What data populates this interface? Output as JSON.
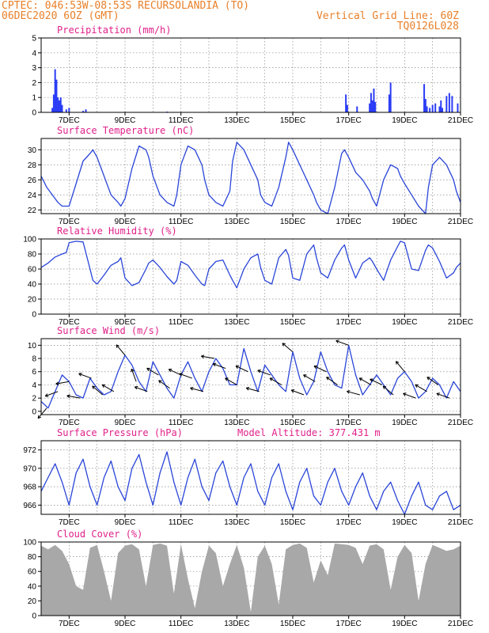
{
  "header": {
    "line1_left": "CPTEC:   046:53W-08:53S  RECURSOLANDIA (TO)",
    "line2_left": "06DEC2020 6OZ (GMT)",
    "line1_right": "Vertical Grid Line: 60Z",
    "line2_right": "TQ0126L028"
  },
  "colors": {
    "header": "#e8802a",
    "title": "#e0218a",
    "series": "#2a45d8",
    "bars": "#2a3cf5",
    "cloud": "#a8a8a8",
    "grid": "#8a8a8a"
  },
  "x_tick_labels": [
    "7DEC",
    "9DEC",
    "11DEC",
    "13DEC",
    "15DEC",
    "17DEC",
    "19DEC",
    "21DEC"
  ],
  "chart_data": [
    {
      "id": "precip",
      "type": "bar",
      "title": "Precipitation (mm/h)",
      "ylim": [
        0,
        5
      ],
      "yticks": [
        0,
        1,
        2,
        3,
        4,
        5
      ],
      "grid": true,
      "x": [
        6.4,
        6.45,
        6.5,
        6.55,
        6.6,
        6.65,
        6.7,
        6.75,
        6.9,
        7.0,
        7.5,
        7.6,
        10.5,
        16.9,
        16.95,
        17.3,
        17.75,
        17.8,
        17.85,
        17.9,
        17.95,
        18.45,
        18.5,
        19.7,
        19.75,
        19.8,
        19.9,
        20.0,
        20.1,
        20.25,
        20.3,
        20.35,
        20.5,
        20.6,
        20.7,
        20.9
      ],
      "values": [
        0.3,
        1.2,
        2.9,
        2.2,
        1.0,
        0.8,
        1.0,
        0.5,
        0.2,
        0.3,
        0.1,
        0.2,
        0.05,
        1.2,
        0.5,
        0.4,
        0.6,
        1.3,
        0.8,
        1.6,
        0.7,
        1.2,
        2.0,
        1.9,
        0.9,
        0.4,
        0.3,
        0.5,
        0.6,
        0.4,
        0.8,
        0.3,
        1.1,
        1.3,
        1.1,
        0.6
      ]
    },
    {
      "id": "temp",
      "type": "line",
      "title": "Surface Temperature (nC)",
      "ylim": [
        21.5,
        31.5
      ],
      "yticks": [
        22,
        24,
        26,
        28,
        30
      ],
      "grid": true,
      "x": [
        6.0,
        6.2,
        6.4,
        6.6,
        6.75,
        7.0,
        7.25,
        7.5,
        7.75,
        7.85,
        8.0,
        8.25,
        8.5,
        8.75,
        8.85,
        9.0,
        9.25,
        9.5,
        9.75,
        9.85,
        10.0,
        10.25,
        10.5,
        10.75,
        10.85,
        11.0,
        11.25,
        11.5,
        11.75,
        11.85,
        12.0,
        12.25,
        12.5,
        12.75,
        12.85,
        13.0,
        13.25,
        13.5,
        13.75,
        13.85,
        14.0,
        14.25,
        14.5,
        14.75,
        14.85,
        15.0,
        15.25,
        15.5,
        15.75,
        15.85,
        16.0,
        16.25,
        16.5,
        16.75,
        16.85,
        17.0,
        17.25,
        17.5,
        17.75,
        17.85,
        18.0,
        18.25,
        18.5,
        18.75,
        18.85,
        19.0,
        19.25,
        19.5,
        19.75,
        19.85,
        20.0,
        20.25,
        20.5,
        20.75,
        20.85,
        21.0
      ],
      "values": [
        26.5,
        25.0,
        24.0,
        23.0,
        22.5,
        22.5,
        25.5,
        28.5,
        29.5,
        30.0,
        29.0,
        26.5,
        24.0,
        23.0,
        22.5,
        23.5,
        27.5,
        30.5,
        30.0,
        29.0,
        26.5,
        24.0,
        23.0,
        22.5,
        24.0,
        28.0,
        30.5,
        30.0,
        28.0,
        26.0,
        24.0,
        23.0,
        22.5,
        24.5,
        28.5,
        31.0,
        30.0,
        28.0,
        26.0,
        24.0,
        23.0,
        22.5,
        25.0,
        29.0,
        31.0,
        30.0,
        28.0,
        26.0,
        24.0,
        23.0,
        22.0,
        21.5,
        25.0,
        29.5,
        30.0,
        29.0,
        27.0,
        26.0,
        24.5,
        23.5,
        22.5,
        26.0,
        28.0,
        27.5,
        26.5,
        25.5,
        24.0,
        22.5,
        21.5,
        25.0,
        28.0,
        29.0,
        28.0,
        26.0,
        24.5,
        23.0
      ]
    },
    {
      "id": "rh",
      "type": "line",
      "title": "Relative Humidity (%)",
      "ylim": [
        0,
        100
      ],
      "yticks": [
        0,
        20,
        40,
        60,
        80,
        100
      ],
      "grid": true,
      "x": [
        6.0,
        6.25,
        6.5,
        6.75,
        6.9,
        7.0,
        7.25,
        7.5,
        7.75,
        7.85,
        8.0,
        8.25,
        8.5,
        8.75,
        8.85,
        9.0,
        9.25,
        9.5,
        9.75,
        9.85,
        10.0,
        10.25,
        10.5,
        10.75,
        10.85,
        11.0,
        11.25,
        11.5,
        11.75,
        11.85,
        12.0,
        12.25,
        12.5,
        12.75,
        12.85,
        13.0,
        13.25,
        13.5,
        13.75,
        13.85,
        14.0,
        14.25,
        14.5,
        14.75,
        14.85,
        15.0,
        15.25,
        15.5,
        15.75,
        15.85,
        16.0,
        16.25,
        16.5,
        16.75,
        16.85,
        17.0,
        17.25,
        17.5,
        17.75,
        17.85,
        18.0,
        18.25,
        18.5,
        18.75,
        18.85,
        19.0,
        19.25,
        19.5,
        19.75,
        19.85,
        20.0,
        20.25,
        20.5,
        20.75,
        20.85,
        21.0
      ],
      "values": [
        62,
        68,
        76,
        80,
        82,
        95,
        97,
        96,
        60,
        45,
        40,
        52,
        65,
        70,
        75,
        48,
        38,
        42,
        60,
        68,
        72,
        62,
        50,
        40,
        45,
        70,
        65,
        52,
        40,
        38,
        60,
        70,
        72,
        52,
        45,
        35,
        60,
        75,
        80,
        62,
        45,
        40,
        75,
        86,
        78,
        48,
        45,
        80,
        92,
        75,
        55,
        48,
        72,
        88,
        92,
        72,
        48,
        68,
        75,
        70,
        60,
        45,
        72,
        90,
        97,
        95,
        60,
        58,
        85,
        92,
        88,
        70,
        48,
        55,
        62,
        68
      ]
    },
    {
      "id": "wind",
      "type": "line",
      "title": "Surface Wind (m/s)",
      "ylim": [
        -0.5,
        11
      ],
      "yticks": [
        0,
        2,
        4,
        6,
        8,
        10
      ],
      "grid": true,
      "x": [
        6.0,
        6.25,
        6.5,
        6.75,
        7.0,
        7.25,
        7.5,
        7.75,
        8.0,
        8.25,
        8.5,
        8.75,
        9.0,
        9.25,
        9.5,
        9.75,
        10.0,
        10.25,
        10.5,
        10.75,
        11.0,
        11.25,
        11.5,
        11.75,
        12.0,
        12.25,
        12.5,
        12.75,
        13.0,
        13.25,
        13.5,
        13.75,
        14.0,
        14.25,
        14.5,
        14.75,
        15.0,
        15.25,
        15.5,
        15.75,
        16.0,
        16.25,
        16.5,
        16.75,
        17.0,
        17.25,
        17.5,
        17.75,
        18.0,
        18.25,
        18.5,
        18.75,
        19.0,
        19.25,
        19.5,
        19.75,
        20.0,
        20.25,
        20.5,
        20.75,
        21.0
      ],
      "values": [
        1.5,
        0.5,
        3.0,
        5.5,
        4.5,
        2.5,
        2.0,
        5.0,
        3.5,
        2.5,
        3.0,
        6.0,
        8.5,
        7.0,
        4.5,
        3.0,
        7.5,
        5.5,
        3.5,
        2.0,
        5.5,
        7.5,
        5.0,
        3.0,
        6.0,
        8.0,
        6.5,
        4.0,
        4.0,
        9.5,
        6.0,
        3.0,
        7.0,
        5.5,
        4.0,
        3.0,
        9.0,
        5.0,
        2.5,
        4.5,
        9.0,
        6.0,
        4.0,
        3.5,
        10.0,
        5.5,
        2.5,
        4.0,
        5.5,
        4.0,
        2.5,
        5.0,
        6.0,
        4.5,
        2.0,
        3.0,
        5.0,
        4.0,
        2.0,
        4.5,
        3.0
      ],
      "vectors_x": [
        6.2,
        6.6,
        7.0,
        7.4,
        7.8,
        8.2,
        8.6,
        9.0,
        9.4,
        9.8,
        10.2,
        10.6,
        11.0,
        11.4,
        11.8,
        12.2,
        12.6,
        13.0,
        13.4,
        13.8,
        14.2,
        14.6,
        15.0,
        15.4,
        15.8,
        16.2,
        16.6,
        17.0,
        17.4,
        17.8,
        18.2,
        18.6,
        19.0,
        19.4,
        19.8,
        20.2,
        20.6
      ],
      "vectors_angle_deg": [
        130,
        160,
        170,
        190,
        200,
        220,
        210,
        230,
        250,
        200,
        210,
        215,
        205,
        200,
        195,
        190,
        200,
        210,
        205,
        195,
        200,
        210,
        220,
        200,
        210,
        205,
        215,
        200,
        195,
        210,
        205,
        220,
        230,
        200,
        210,
        215,
        200
      ]
    },
    {
      "id": "pres",
      "type": "line",
      "title": "Surface Pressure (hPa)",
      "annotation": "Model Altitude: 377.431  m",
      "ylim": [
        965,
        973
      ],
      "yticks": [
        966,
        968,
        970,
        972
      ],
      "grid": true,
      "x": [
        6.0,
        6.25,
        6.5,
        6.75,
        7.0,
        7.25,
        7.5,
        7.75,
        8.0,
        8.25,
        8.5,
        8.75,
        9.0,
        9.25,
        9.5,
        9.75,
        10.0,
        10.25,
        10.5,
        10.75,
        11.0,
        11.25,
        11.5,
        11.75,
        12.0,
        12.25,
        12.5,
        12.75,
        13.0,
        13.25,
        13.5,
        13.75,
        14.0,
        14.25,
        14.5,
        14.75,
        15.0,
        15.25,
        15.5,
        15.75,
        16.0,
        16.25,
        16.5,
        16.75,
        17.0,
        17.25,
        17.5,
        17.75,
        18.0,
        18.25,
        18.5,
        18.75,
        19.0,
        19.25,
        19.5,
        19.75,
        20.0,
        20.25,
        20.5,
        20.75,
        21.0
      ],
      "values": [
        967.5,
        969,
        970.5,
        968.5,
        966,
        969.5,
        971,
        968,
        966,
        969,
        970.8,
        968,
        966.5,
        970,
        971.5,
        968.5,
        966,
        969.5,
        971.8,
        968.5,
        966,
        969,
        971,
        968,
        966.5,
        969.5,
        970.8,
        968,
        966,
        969,
        970.5,
        967.5,
        966,
        969,
        970.5,
        967.5,
        965.5,
        968.5,
        970,
        967,
        966,
        968.5,
        970,
        967.5,
        966,
        968,
        969.5,
        967,
        965.5,
        967.5,
        968.5,
        966.5,
        965,
        967,
        968.5,
        966,
        965.5,
        967,
        967.5,
        965.5,
        966
      ]
    },
    {
      "id": "cloud",
      "type": "area",
      "title": "Cloud Cover (%)",
      "ylim": [
        0,
        100
      ],
      "yticks": [
        0,
        20,
        40,
        60,
        80,
        100
      ],
      "grid": true,
      "x": [
        6.0,
        6.25,
        6.5,
        6.75,
        7.0,
        7.25,
        7.5,
        7.75,
        8.0,
        8.25,
        8.5,
        8.75,
        9.0,
        9.25,
        9.5,
        9.75,
        10.0,
        10.25,
        10.5,
        10.75,
        11.0,
        11.25,
        11.5,
        11.75,
        12.0,
        12.25,
        12.5,
        12.75,
        13.0,
        13.25,
        13.5,
        13.75,
        14.0,
        14.25,
        14.5,
        14.75,
        15.0,
        15.25,
        15.5,
        15.75,
        16.0,
        16.25,
        16.5,
        16.75,
        17.0,
        17.25,
        17.5,
        17.75,
        18.0,
        18.25,
        18.5,
        18.75,
        19.0,
        19.25,
        19.5,
        19.75,
        20.0,
        20.25,
        20.5,
        20.75,
        21.0
      ],
      "values": [
        95,
        90,
        96,
        88,
        70,
        40,
        35,
        92,
        96,
        60,
        20,
        85,
        95,
        97,
        90,
        40,
        96,
        98,
        95,
        30,
        97,
        50,
        10,
        60,
        95,
        85,
        40,
        70,
        96,
        65,
        5,
        80,
        95,
        70,
        15,
        90,
        96,
        98,
        92,
        45,
        75,
        55,
        98,
        97,
        96,
        92,
        70,
        95,
        97,
        90,
        35,
        80,
        96,
        85,
        20,
        70,
        96,
        92,
        88,
        90,
        95
      ]
    }
  ]
}
